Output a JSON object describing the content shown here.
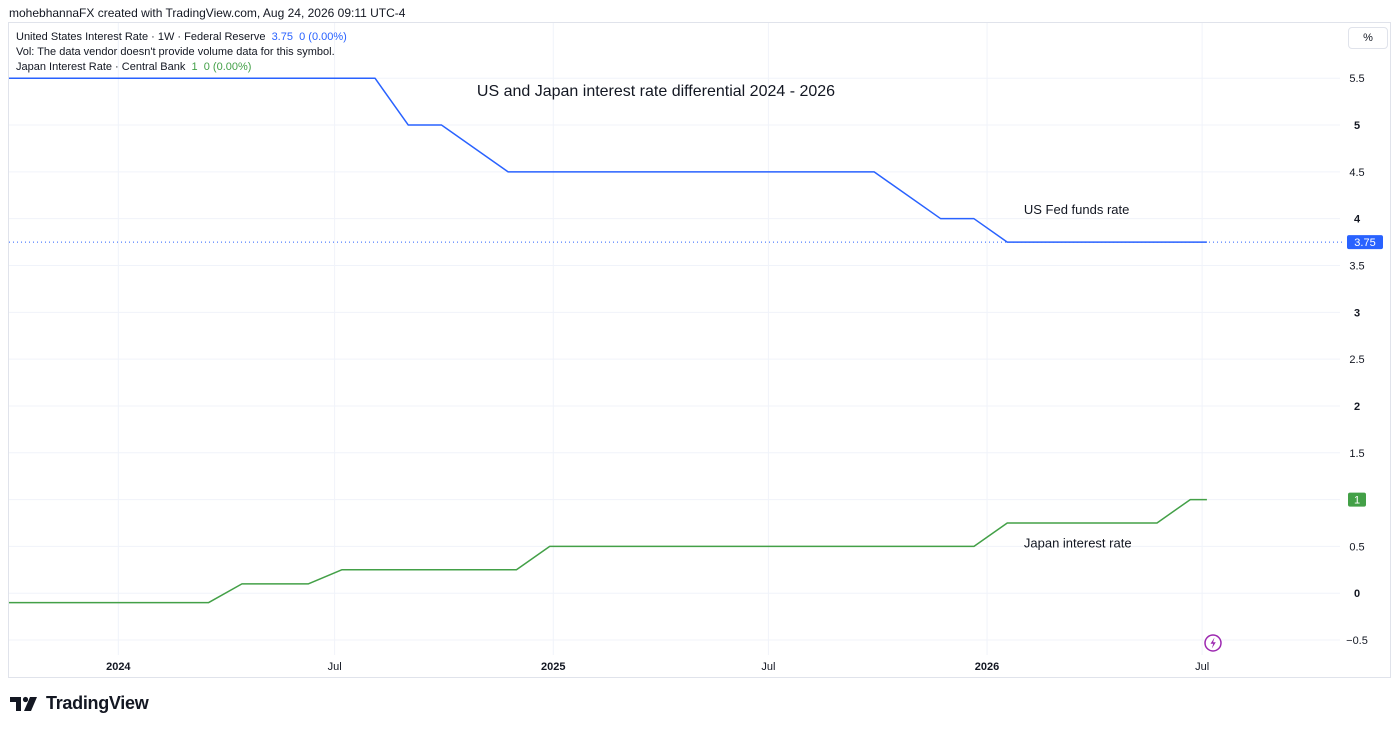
{
  "header": {
    "credit": "mohebhannaFX created with TradingView.com, Aug 24, 2026 09:11 UTC-4"
  },
  "legend": {
    "us_label": "United States Interest Rate · 1W · Federal Reserve",
    "us_value": "3.75",
    "us_change": "0 (0.00%)",
    "vol_note": "Vol: The data vendor doesn't provide volume data for this symbol.",
    "jp_label": "Japan Interest Rate · Central Bank",
    "jp_value": "1",
    "jp_change": "0 (0.00%)"
  },
  "scale_button": "%",
  "brand": "TradingView",
  "colors": {
    "us": "#2962ff",
    "jp": "#43a047",
    "grid": "#f0f3fa",
    "axis_text": "#131722",
    "badge_event": "#9c27b0"
  },
  "chart_data": {
    "type": "line",
    "title": "US and Japan interest rate differential 2024 - 2026",
    "x_ticks": [
      {
        "label": "2024",
        "date": "2024-01-01",
        "bold": true
      },
      {
        "label": "Jul",
        "date": "2024-07-01",
        "bold": false
      },
      {
        "label": "2025",
        "date": "2025-01-01",
        "bold": true
      },
      {
        "label": "Jul",
        "date": "2025-07-01",
        "bold": false
      },
      {
        "label": "2026",
        "date": "2026-01-01",
        "bold": true
      },
      {
        "label": "Jul",
        "date": "2026-07-01",
        "bold": false
      }
    ],
    "y_ticks": [
      {
        "label": "5.5",
        "value": 5.5,
        "bold": false
      },
      {
        "label": "5",
        "value": 5,
        "bold": true
      },
      {
        "label": "4.5",
        "value": 4.5,
        "bold": false
      },
      {
        "label": "4",
        "value": 4,
        "bold": true
      },
      {
        "label": "3.5",
        "value": 3.5,
        "bold": false
      },
      {
        "label": "3",
        "value": 3,
        "bold": true
      },
      {
        "label": "2.5",
        "value": 2.5,
        "bold": false
      },
      {
        "label": "2",
        "value": 2,
        "bold": true
      },
      {
        "label": "1.5",
        "value": 1.5,
        "bold": false
      },
      {
        "label": "0.5",
        "value": 0.5,
        "bold": false
      },
      {
        "label": "0",
        "value": 0,
        "bold": true
      },
      {
        "label": "−0.5",
        "value": -0.5,
        "bold": false
      }
    ],
    "xlim": [
      "2023-10-01",
      "2026-10-25"
    ],
    "ylim": [
      -0.66,
      6.09
    ],
    "series": [
      {
        "name": "US Fed funds rate",
        "color": "#2962ff",
        "last_value_label": "3.75",
        "points": [
          [
            "2023-10-01",
            5.5
          ],
          [
            "2024-08-04",
            5.5
          ],
          [
            "2024-09-01",
            5.0
          ],
          [
            "2024-09-29",
            5.0
          ],
          [
            "2024-11-24",
            4.5
          ],
          [
            "2025-09-28",
            4.5
          ],
          [
            "2025-11-23",
            4.0
          ],
          [
            "2025-12-21",
            4.0
          ],
          [
            "2026-01-18",
            3.75
          ],
          [
            "2026-07-05",
            3.75
          ]
        ]
      },
      {
        "name": "Japan interest rate",
        "color": "#43a047",
        "last_value_label": "1",
        "points": [
          [
            "2023-10-01",
            -0.1
          ],
          [
            "2024-03-17",
            -0.1
          ],
          [
            "2024-04-14",
            0.1
          ],
          [
            "2024-06-09",
            0.1
          ],
          [
            "2024-07-07",
            0.25
          ],
          [
            "2024-12-01",
            0.25
          ],
          [
            "2024-12-29",
            0.5
          ],
          [
            "2025-12-21",
            0.5
          ],
          [
            "2026-01-18",
            0.75
          ],
          [
            "2026-05-24",
            0.75
          ],
          [
            "2026-06-21",
            1.0
          ],
          [
            "2026-07-05",
            1.0
          ]
        ]
      }
    ],
    "annotations": [
      {
        "text": "US Fed funds rate",
        "date": "2026-02-01",
        "value": 4.05
      },
      {
        "text": "Japan interest rate",
        "date": "2026-02-01",
        "value": 0.49
      }
    ],
    "current_price_line": {
      "value": 3.75
    },
    "grid": true,
    "legend_position": "top-left"
  }
}
